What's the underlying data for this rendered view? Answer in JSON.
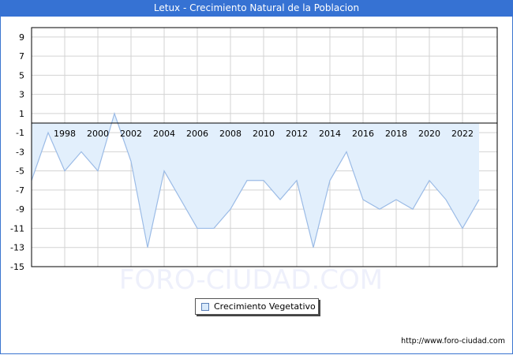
{
  "header": {
    "title": "Letux - Crecimiento Natural de la Poblacion"
  },
  "watermark": "FORO-CIUDAD.COM",
  "legend": {
    "label": "Crecimiento Vegetativo",
    "swatch_color": "#d9eafb"
  },
  "footer": {
    "url": "http://www.foro-ciudad.com"
  },
  "colors": {
    "title_bar": "#3672d3",
    "line": "#9bbbe6",
    "fill": "#e2effc",
    "grid": "#d3d3d3"
  },
  "chart_data": {
    "type": "area",
    "title": "Letux - Crecimiento Natural de la Poblacion",
    "xlabel": "",
    "ylabel": "",
    "ylim": [
      -15,
      10
    ],
    "grid": true,
    "legend_position": "bottom-center",
    "yticks": [
      9,
      7,
      5,
      3,
      1,
      -1,
      -3,
      -5,
      -7,
      -9,
      -11,
      -13,
      -15
    ],
    "xticks": [
      "1998",
      "2000",
      "2002",
      "2004",
      "2006",
      "2008",
      "2010",
      "2012",
      "2014",
      "2016",
      "2018",
      "2020",
      "2022"
    ],
    "x": [
      1996,
      1997,
      1998,
      1999,
      2000,
      2001,
      2002,
      2003,
      2004,
      2005,
      2006,
      2007,
      2008,
      2009,
      2010,
      2011,
      2012,
      2013,
      2014,
      2015,
      2016,
      2017,
      2018,
      2019,
      2020,
      2021,
      2022,
      2023
    ],
    "series": [
      {
        "name": "Crecimiento Vegetativo",
        "values": [
          -6,
          -1,
          -5,
          -3,
          -5,
          1,
          -4,
          -13,
          -5,
          -8,
          -11,
          -11,
          -9,
          -6,
          -6,
          -8,
          -6,
          -13,
          -6,
          -3,
          -8,
          -9,
          -8,
          -9,
          -6,
          -8,
          -11,
          -8
        ]
      }
    ]
  }
}
